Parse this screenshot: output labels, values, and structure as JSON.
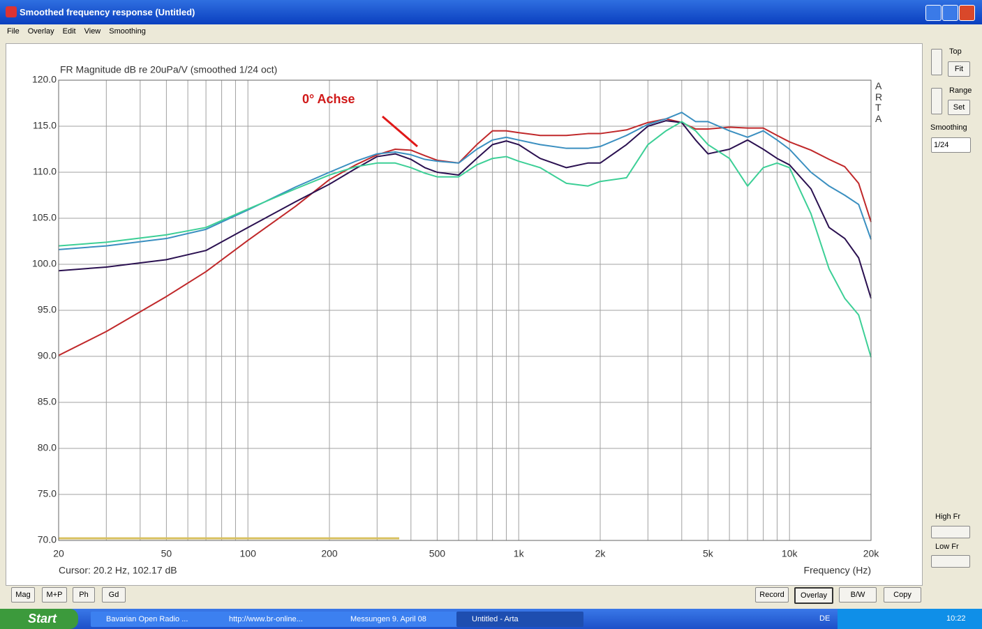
{
  "window": {
    "title": "Smoothed frequency response (Untitled)",
    "menu": [
      "File",
      "Overlay",
      "Edit",
      "View",
      "Smoothing"
    ]
  },
  "side_panel": {
    "top": "Top",
    "fit": "Fit",
    "range": "Range",
    "set": "Set",
    "smoothing": "Smoothing",
    "smoothing_value": "1/24",
    "high_fr": "High Fr",
    "low_fr": "Low Fr"
  },
  "bottom_left_buttons": [
    "Mag",
    "M+P",
    "Ph",
    "Gd"
  ],
  "bottom_right_buttons": [
    "Record",
    "Overlay",
    "B/W",
    "Copy"
  ],
  "taskbar": {
    "start": "Start",
    "items": [
      "Bavarian Open Radio ...",
      "http://www.br-online...",
      "Messungen 9. April 08",
      "Untitled - Arta"
    ],
    "language": "DE",
    "clock": "10:22"
  },
  "chart_data": {
    "type": "line",
    "title": "FR Magnitude dB re 20uPa/V (smoothed 1/24 oct)",
    "annotation": "0° Achse",
    "watermark": "ARTA",
    "xlabel": "Frequency (Hz)",
    "cursor": "Cursor: 20.2 Hz, 102.17 dB",
    "xscale": "log",
    "grid": true,
    "xlim": [
      20,
      20000
    ],
    "ylim": [
      70,
      120
    ],
    "xticks": [
      20,
      50,
      100,
      200,
      500,
      {
        "value": 1000,
        "label": "1k"
      },
      {
        "value": 2000,
        "label": "2k"
      },
      {
        "value": 5000,
        "label": "5k"
      },
      {
        "value": 10000,
        "label": "10k"
      },
      {
        "value": 20000,
        "label": "20k"
      }
    ],
    "xminor": [
      30,
      40,
      60,
      70,
      80,
      90,
      300,
      400,
      600,
      700,
      800,
      900,
      3000,
      4000,
      6000,
      7000,
      8000,
      9000
    ],
    "yticks": [
      {
        "value": 70,
        "label": "70.0"
      },
      {
        "value": 75,
        "label": "75.0"
      },
      {
        "value": 80,
        "label": "80.0"
      },
      {
        "value": 85,
        "label": "85.0"
      },
      {
        "value": 90,
        "label": "90.0"
      },
      {
        "value": 95,
        "label": "95.0"
      },
      {
        "value": 100,
        "label": "100.0"
      },
      {
        "value": 105,
        "label": "105.0"
      },
      {
        "value": 110,
        "label": "110.0"
      },
      {
        "value": 115,
        "label": "115.0"
      },
      {
        "value": 120,
        "label": "120.0"
      }
    ],
    "x": [
      20,
      30,
      50,
      70,
      100,
      150,
      200,
      250,
      300,
      350,
      400,
      450,
      500,
      600,
      700,
      800,
      900,
      1000,
      1200,
      1500,
      1800,
      2000,
      2500,
      3000,
      3500,
      4000,
      4500,
      5000,
      6000,
      7000,
      8000,
      9000,
      10000,
      12000,
      14000,
      16000,
      18000,
      20000
    ],
    "series": [
      {
        "color": "#c0282a",
        "values": [
          90.1,
          92.7,
          96.5,
          99.2,
          102.6,
          106.3,
          109.2,
          110.8,
          111.9,
          112.5,
          112.4,
          111.8,
          111.3,
          111.0,
          113.0,
          114.5,
          114.5,
          114.3,
          114.0,
          114.0,
          114.2,
          114.2,
          114.6,
          115.4,
          115.8,
          115.4,
          114.7,
          114.7,
          114.9,
          114.8,
          114.8,
          114.0,
          113.3,
          112.4,
          111.4,
          110.6,
          108.8,
          104.6
        ]
      },
      {
        "color": "#2a1050",
        "values": [
          99.3,
          99.7,
          100.5,
          101.5,
          104.0,
          106.8,
          108.7,
          110.4,
          111.7,
          112.0,
          111.4,
          110.5,
          110.0,
          109.7,
          111.5,
          113.0,
          113.4,
          113.0,
          111.5,
          110.5,
          111.0,
          111.0,
          113.0,
          115.0,
          115.6,
          115.4,
          113.5,
          112.0,
          112.5,
          113.5,
          112.5,
          111.5,
          110.8,
          108.2,
          104.0,
          102.8,
          100.7,
          96.3
        ]
      },
      {
        "color": "#3a8fc0",
        "values": [
          101.6,
          102.0,
          102.8,
          103.8,
          105.9,
          108.4,
          110.0,
          111.2,
          112.0,
          112.2,
          111.9,
          111.4,
          111.2,
          111.0,
          112.5,
          113.5,
          113.8,
          113.5,
          113.0,
          112.6,
          112.6,
          112.8,
          114.0,
          115.2,
          115.8,
          116.5,
          115.5,
          115.5,
          114.5,
          113.8,
          114.5,
          113.5,
          112.5,
          110.0,
          108.5,
          107.5,
          106.5,
          102.7
        ]
      },
      {
        "color": "#3ccf96",
        "values": [
          102.0,
          102.4,
          103.2,
          104.0,
          106.0,
          108.2,
          109.7,
          110.6,
          111.0,
          111.0,
          110.5,
          109.9,
          109.5,
          109.5,
          110.8,
          111.5,
          111.7,
          111.2,
          110.5,
          108.8,
          108.5,
          109.0,
          109.4,
          113.0,
          114.5,
          115.5,
          114.5,
          113.0,
          111.5,
          108.5,
          110.5,
          111.0,
          110.5,
          105.5,
          99.5,
          96.3,
          94.5,
          89.9
        ]
      }
    ]
  }
}
